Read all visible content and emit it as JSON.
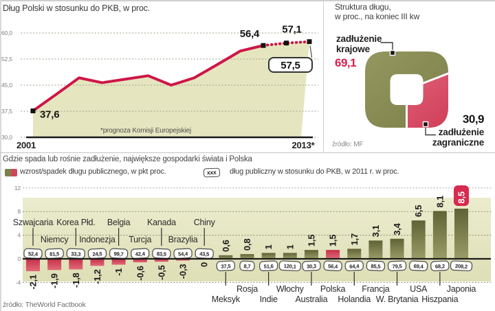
{
  "colors": {
    "accent_red": "#ce1648",
    "area_fill": "#e5e6bf",
    "parchment_top": "#ebecce",
    "parchment_bottom": "#dedfb6",
    "bar_green_top": "#5f6336",
    "bar_green_bottom": "#9a9d66",
    "bar_red_top": "#c73048",
    "bar_red_bottom": "#e06a79",
    "donut_green_light": "#949860",
    "donut_green_dark": "#7b7f48",
    "donut_red_light": "#e06278",
    "donut_red_dark": "#cd3550",
    "highlight_box_red": "#d62b4e",
    "value_red_text": "#d61f4f",
    "grid_white": "#aaaaaa",
    "grid_parchment": "#8f8f73",
    "axis": "#1a1a1a",
    "text_dark": "#1f1f1f",
    "text_gray": "#7f7f7f"
  },
  "debt_structure": {
    "title_line1": "Struktura długu,",
    "title_line2": "w proc., na koniec III kw",
    "domestic_label_line1": "zadłużenie",
    "domestic_label_line2": "krajowe",
    "domestic_value": "69,1",
    "foreign_value": "30,9",
    "foreign_label_line1": "zadłużenie",
    "foreign_label_line2": "zagraniczne",
    "source": "źródło: MF"
  },
  "bottom": {
    "legend_bar_label": "wzrost/spadek długu publicznego, w pkt proc.",
    "legend_box_text": "xxx",
    "legend_box_label": "dług publiczny w stosunku do PKB, w 2011 r. w proc."
  },
  "chart_data": [
    {
      "type": "line",
      "title": "Dług Polski w stosunku do PKB, w proc.",
      "x": [
        2001,
        2002,
        2003,
        2004,
        2005,
        2006,
        2007,
        2008,
        2009,
        2010,
        2011,
        2012,
        2013
      ],
      "values": [
        37.6,
        42.3,
        47.1,
        45.7,
        46.7,
        47.7,
        45.0,
        47.1,
        50.9,
        54.8,
        56.4,
        57.1,
        57.5
      ],
      "forecast_from_x": 2011,
      "marker_years": [
        2001,
        2011,
        2012,
        2013
      ],
      "point_labels": [
        {
          "x": 2001,
          "label": "37,6"
        },
        {
          "x": 2011,
          "label": "56,4"
        },
        {
          "x": 2012,
          "label": "57,1"
        }
      ],
      "callout": {
        "x": 2013,
        "label": "57,5"
      },
      "yticks": [
        {
          "v": 60,
          "label": "60,0"
        },
        {
          "v": 52.5,
          "label": "52,5"
        },
        {
          "v": 45,
          "label": "45,0"
        },
        {
          "v": 37.5,
          "label": "37,5"
        },
        {
          "v": 30,
          "label": "30,0"
        }
      ],
      "ylim": [
        30,
        60
      ],
      "x_axis_labels": [
        "2001",
        "2013*"
      ],
      "footnote": "*prognoza Komisji Europejskiej",
      "line_color": "#ce1648",
      "fill_color": "#e5e6bf"
    },
    {
      "type": "pie",
      "shape": "rounded-square-donut",
      "title": "Struktura długu, w proc., na koniec III kw",
      "slices": [
        {
          "label": "zadłużenie krajowe",
          "value": 69.1,
          "value_label": "69,1",
          "color": "#8a8e56"
        },
        {
          "label": "zadłużenie zagraniczne",
          "value": 30.9,
          "value_label": "30,9",
          "color": "#d84a62"
        }
      ],
      "source": "źródło: MF"
    },
    {
      "type": "bar",
      "title": "Gdzie spada lub rośnie zadłużenie, największe gospodarki świata i Polska",
      "ylim": [
        -4,
        12
      ],
      "yticks": [
        12,
        8,
        4,
        0,
        -4
      ],
      "series_note": "change = wzrost/spadek długu publicznego w pkt proc.; debt_label = dług publiczny w stosunku do PKB w 2011 r. w proc.",
      "countries": [
        {
          "name": "Szwajcaria",
          "change": -2.1,
          "change_label": "-2,1",
          "debt_label": "52,4"
        },
        {
          "name": "Niemcy",
          "change": -1.9,
          "change_label": "-1,9",
          "debt_label": "81,5"
        },
        {
          "name": "Korea Płd.",
          "change": -1.8,
          "change_label": "-1,8",
          "debt_label": "33,3"
        },
        {
          "name": "Indonezja",
          "change": -1.2,
          "change_label": "-1,2",
          "debt_label": "24,5"
        },
        {
          "name": "Belgia",
          "change": -1.0,
          "change_label": "-1",
          "debt_label": "99,7"
        },
        {
          "name": "Turcja",
          "change": -0.6,
          "change_label": "-0,6",
          "debt_label": "42,4"
        },
        {
          "name": "Kanada",
          "change": -0.5,
          "change_label": "-0,5",
          "debt_label": "83,5"
        },
        {
          "name": "Brazylia",
          "change": -0.3,
          "change_label": "-0,3",
          "debt_label": "54,4"
        },
        {
          "name": "Chiny",
          "change": 0,
          "change_label": "0",
          "debt_label": "43,5"
        },
        {
          "name": "Meksyk",
          "change": 0.6,
          "change_label": "0,6",
          "debt_label": "37,5"
        },
        {
          "name": "Rosja",
          "change": 0.8,
          "change_label": "0,8",
          "debt_label": "8,7"
        },
        {
          "name": "Indie",
          "change": 1.0,
          "change_label": "1",
          "debt_label": "51,6"
        },
        {
          "name": "Włochy",
          "change": 1.0,
          "change_label": "1",
          "debt_label": "120,1"
        },
        {
          "name": "Australia",
          "change": 1.5,
          "change_label": "1,5",
          "debt_label": "30,3"
        },
        {
          "name": "Polska",
          "change": 1.5,
          "change_label": "1,5",
          "debt_label": "56,4",
          "highlight": true
        },
        {
          "name": "Holandia",
          "change": 1.7,
          "change_label": "1,7",
          "debt_label": "64,4"
        },
        {
          "name": "Francja",
          "change": 3.1,
          "change_label": "3,1",
          "debt_label": "85,5"
        },
        {
          "name": "W. Brytania",
          "change": 3.4,
          "change_label": "3,4",
          "debt_label": "79,5"
        },
        {
          "name": "USA",
          "change": 6.5,
          "change_label": "6,5",
          "debt_label": "69,4"
        },
        {
          "name": "Hiszpania",
          "change": 8.1,
          "change_label": "8,1",
          "debt_label": "68,2"
        },
        {
          "name": "Japonia",
          "change": 8.5,
          "change_label": "8,5",
          "debt_label": "208,2",
          "label_style": "red-box"
        }
      ],
      "source": "źródło: TheWorld Factbook"
    }
  ]
}
